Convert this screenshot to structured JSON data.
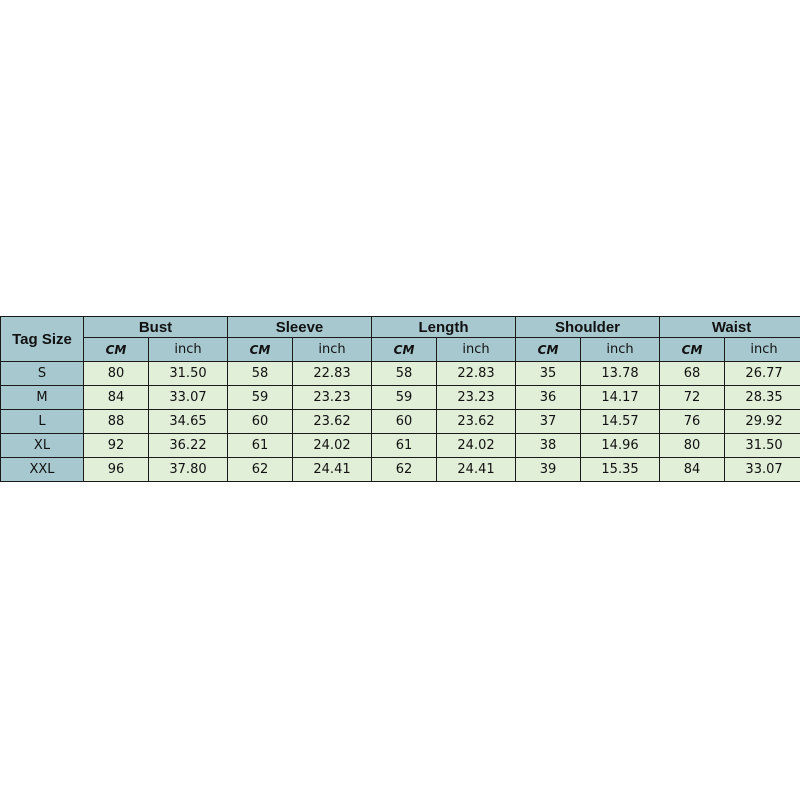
{
  "table": {
    "tag_size_label": "Tag Size",
    "groups": [
      "Bust",
      "Sleeve",
      "Length",
      "Shoulder",
      "Waist"
    ],
    "unit_labels": [
      "CM",
      "inch"
    ],
    "rows": [
      {
        "size": "S",
        "values": [
          "80",
          "31.50",
          "58",
          "22.83",
          "58",
          "22.83",
          "35",
          "13.78",
          "68",
          "26.77"
        ]
      },
      {
        "size": "M",
        "values": [
          "84",
          "33.07",
          "59",
          "23.23",
          "59",
          "23.23",
          "36",
          "14.17",
          "72",
          "28.35"
        ]
      },
      {
        "size": "L",
        "values": [
          "88",
          "34.65",
          "60",
          "23.62",
          "60",
          "23.62",
          "37",
          "14.57",
          "76",
          "29.92"
        ]
      },
      {
        "size": "XL",
        "values": [
          "92",
          "36.22",
          "61",
          "24.02",
          "61",
          "24.02",
          "38",
          "14.96",
          "80",
          "31.50"
        ]
      },
      {
        "size": "XXL",
        "values": [
          "96",
          "37.80",
          "62",
          "24.41",
          "62",
          "24.41",
          "39",
          "15.35",
          "84",
          "33.07"
        ]
      }
    ],
    "colors": {
      "header": "#a7c8cf",
      "body": "#e2efd8",
      "border": "#1a1a1a"
    }
  }
}
